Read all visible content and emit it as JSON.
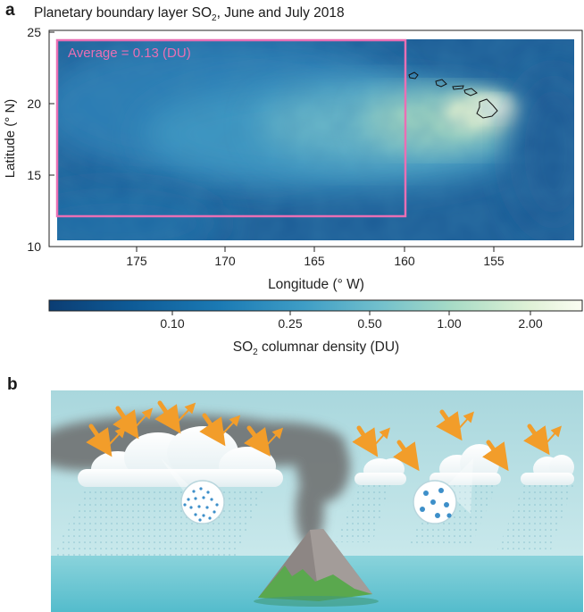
{
  "panel_a": {
    "label": "a",
    "title_main": "Planetary boundary layer SO",
    "title_sub": "2",
    "title_tail": ", June and July 2018",
    "box_annotation": "Average = 0.13 (DU)",
    "xlabel": "Longitude (° W)",
    "ylabel": "Latitude (° N)",
    "xticks": [
      "175",
      "170",
      "165",
      "160",
      "155"
    ],
    "yticks": [
      "25",
      "20",
      "15",
      "10"
    ],
    "colorbar": {
      "ticks": [
        "0.10",
        "0.25",
        "0.50",
        "1.00",
        "2.00"
      ],
      "label_main": "SO",
      "label_sub": "2",
      "label_tail": " columnar density (DU)",
      "colors": [
        "#0b3d73",
        "#0e5a96",
        "#1b7ab4",
        "#3f9ec6",
        "#72c0cc",
        "#a9dcc6",
        "#dff1d6",
        "#fbfdf2"
      ]
    },
    "box_color": "#e96fb4"
  },
  "panel_b": {
    "label": "b"
  },
  "chart_data": {
    "type": "heatmap",
    "title": "Planetary boundary layer SO2, June and July 2018",
    "xlabel": "Longitude (° W)",
    "ylabel": "Latitude (° N)",
    "xlim": [
      180,
      150
    ],
    "ylim": [
      10,
      25
    ],
    "xticks": [
      175,
      170,
      165,
      160,
      155
    ],
    "yticks": [
      10,
      15,
      20,
      25
    ],
    "colorbar_label": "SO2 columnar density (DU)",
    "colorbar_ticks": [
      0.1,
      0.25,
      0.5,
      1.0,
      2.0
    ],
    "colorbar_scale": "log",
    "box_region": {
      "lon": [
        179.5,
        160
      ],
      "lat": [
        12,
        24.5
      ]
    },
    "box_average_DU": 0.13,
    "plume_peak_DU": 2.0,
    "plume_peak_location": {
      "lon": 154,
      "lat": 19.5
    }
  }
}
